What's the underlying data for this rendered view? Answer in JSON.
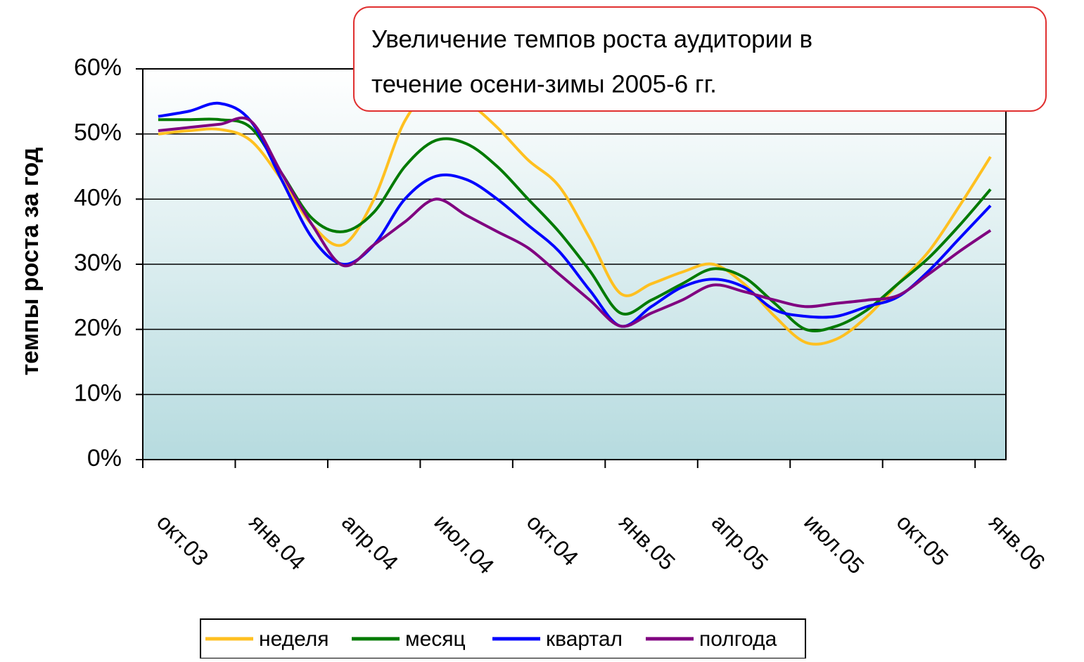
{
  "chart_data": {
    "type": "line",
    "ylabel": "темпы роста за год",
    "annotation": [
      "Увеличение темпов роста аудитории в",
      "течение осени-зимы 2005-6 гг."
    ],
    "categories": [
      "окт.03",
      null,
      null,
      "янв.04",
      null,
      null,
      "апр.04",
      null,
      null,
      "июл.04",
      null,
      null,
      "окт.04",
      null,
      null,
      "янв.05",
      null,
      null,
      "апр.05",
      null,
      null,
      "июл.05",
      null,
      null,
      "окт.05",
      null,
      null,
      "янв.06"
    ],
    "ylim": [
      0,
      60
    ],
    "yticks": [
      {
        "value": 0,
        "label": "0%"
      },
      {
        "value": 10,
        "label": "10%"
      },
      {
        "value": 20,
        "label": "20%"
      },
      {
        "value": 30,
        "label": "30%"
      },
      {
        "value": 40,
        "label": "40%"
      },
      {
        "value": 50,
        "label": "50%"
      },
      {
        "value": 60,
        "label": "60%"
      }
    ],
    "grid": true,
    "legend": "bottom",
    "series": [
      {
        "name": "неделя",
        "color": "#ffc020",
        "values": [
          50,
          50.5,
          50.7,
          49,
          43,
          36,
          33,
          40,
          52,
          57,
          55,
          51,
          46,
          42,
          34,
          25.5,
          27,
          28.8,
          30,
          27,
          22,
          18,
          18.5,
          22,
          27,
          32,
          39,
          46.5
        ]
      },
      {
        "name": "месяц",
        "color": "#007a00",
        "values": [
          52.2,
          52.2,
          52.2,
          51,
          44,
          37,
          35,
          38,
          45,
          49,
          48.5,
          45,
          40,
          35,
          29,
          22.5,
          24.5,
          27,
          29.3,
          28,
          24,
          20,
          20.5,
          23,
          27,
          31,
          36,
          41.5
        ]
      },
      {
        "name": "квартал",
        "color": "#0000ff",
        "values": [
          52.7,
          53.5,
          54.7,
          52,
          43,
          34,
          30,
          33,
          40,
          43.5,
          43,
          40,
          36,
          32,
          26,
          20.5,
          23.5,
          26.5,
          27.7,
          26.5,
          23,
          22,
          22,
          23.5,
          25,
          29,
          34,
          39
        ]
      },
      {
        "name": "полгода",
        "color": "#800080",
        "values": [
          50.5,
          51,
          51.5,
          52,
          44,
          36,
          29.8,
          33,
          36.5,
          40,
          37.5,
          35,
          32.5,
          28.5,
          24.5,
          20.5,
          22.5,
          24.5,
          26.8,
          25.8,
          24.5,
          23.5,
          24,
          24.5,
          25.2,
          28.5,
          32,
          35.2
        ]
      }
    ]
  }
}
